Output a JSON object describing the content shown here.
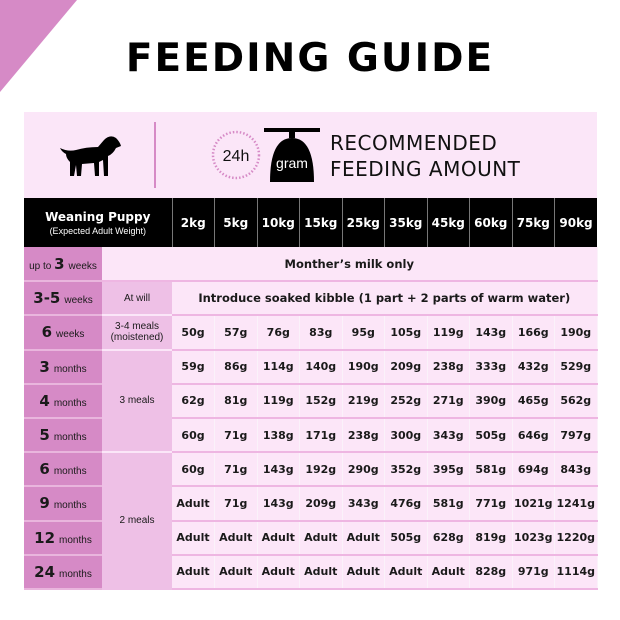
{
  "title": "FEEDING GUIDE",
  "header_band": {
    "icon_dog": "puppy-silhouette-icon",
    "icon_clock_label": "24h",
    "icon_scale_label": "gram",
    "heading_line1": "RECOMMENDED",
    "heading_line2": "FEEDING AMOUNT"
  },
  "table": {
    "header_main": "Weaning Puppy",
    "header_sub": "(Expected Adult Weight)",
    "weights": [
      "2kg",
      "5kg",
      "10kg",
      "15kg",
      "25kg",
      "35kg",
      "45kg",
      "60kg",
      "75kg",
      "90kg"
    ],
    "rows": [
      {
        "prefix": "up to",
        "num": "3",
        "unit": "weeks",
        "meals": "",
        "span_text": "Monther’s milk only"
      },
      {
        "prefix": "",
        "num": "3-5",
        "unit": "weeks",
        "meals": "At will",
        "span_text": "Introduce soaked kibble (1 part + 2 parts of warm water)"
      },
      {
        "prefix": "",
        "num": "6",
        "unit": "weeks",
        "meals_line1": "3-4 meals",
        "meals_line2": "(moistened)",
        "values": [
          "50g",
          "57g",
          "76g",
          "83g",
          "95g",
          "105g",
          "119g",
          "143g",
          "166g",
          "190g"
        ]
      },
      {
        "prefix": "",
        "num": "3",
        "unit": "months",
        "values": [
          "59g",
          "86g",
          "114g",
          "140g",
          "190g",
          "209g",
          "238g",
          "333g",
          "432g",
          "529g"
        ]
      },
      {
        "prefix": "",
        "num": "4",
        "unit": "months",
        "values": [
          "62g",
          "81g",
          "119g",
          "152g",
          "219g",
          "252g",
          "271g",
          "390g",
          "465g",
          "562g"
        ]
      },
      {
        "prefix": "",
        "num": "5",
        "unit": "months",
        "values": [
          "60g",
          "71g",
          "138g",
          "171g",
          "238g",
          "300g",
          "343g",
          "505g",
          "646g",
          "797g"
        ]
      },
      {
        "prefix": "",
        "num": "6",
        "unit": "months",
        "values": [
          "60g",
          "71g",
          "143g",
          "192g",
          "290g",
          "352g",
          "395g",
          "581g",
          "694g",
          "843g"
        ]
      },
      {
        "prefix": "",
        "num": "9",
        "unit": "months",
        "values": [
          "Adult",
          "71g",
          "143g",
          "209g",
          "343g",
          "476g",
          "581g",
          "771g",
          "1021g",
          "1241g"
        ]
      },
      {
        "prefix": "",
        "num": "12",
        "unit": "months",
        "values": [
          "Adult",
          "Adult",
          "Adult",
          "Adult",
          "Adult",
          "505g",
          "628g",
          "819g",
          "1023g",
          "1220g"
        ]
      },
      {
        "prefix": "",
        "num": "24",
        "unit": "months",
        "values": [
          "Adult",
          "Adult",
          "Adult",
          "Adult",
          "Adult",
          "Adult",
          "Adult",
          "828g",
          "971g",
          "1114g"
        ]
      }
    ],
    "meal_groups": {
      "three_meals": "3 meals",
      "two_meals": "2 meals"
    }
  },
  "colors": {
    "accent_pink": "#d68ac6",
    "light_pink": "#fce6f8",
    "mid_pink": "#eec0e6",
    "header_black": "#000000"
  }
}
